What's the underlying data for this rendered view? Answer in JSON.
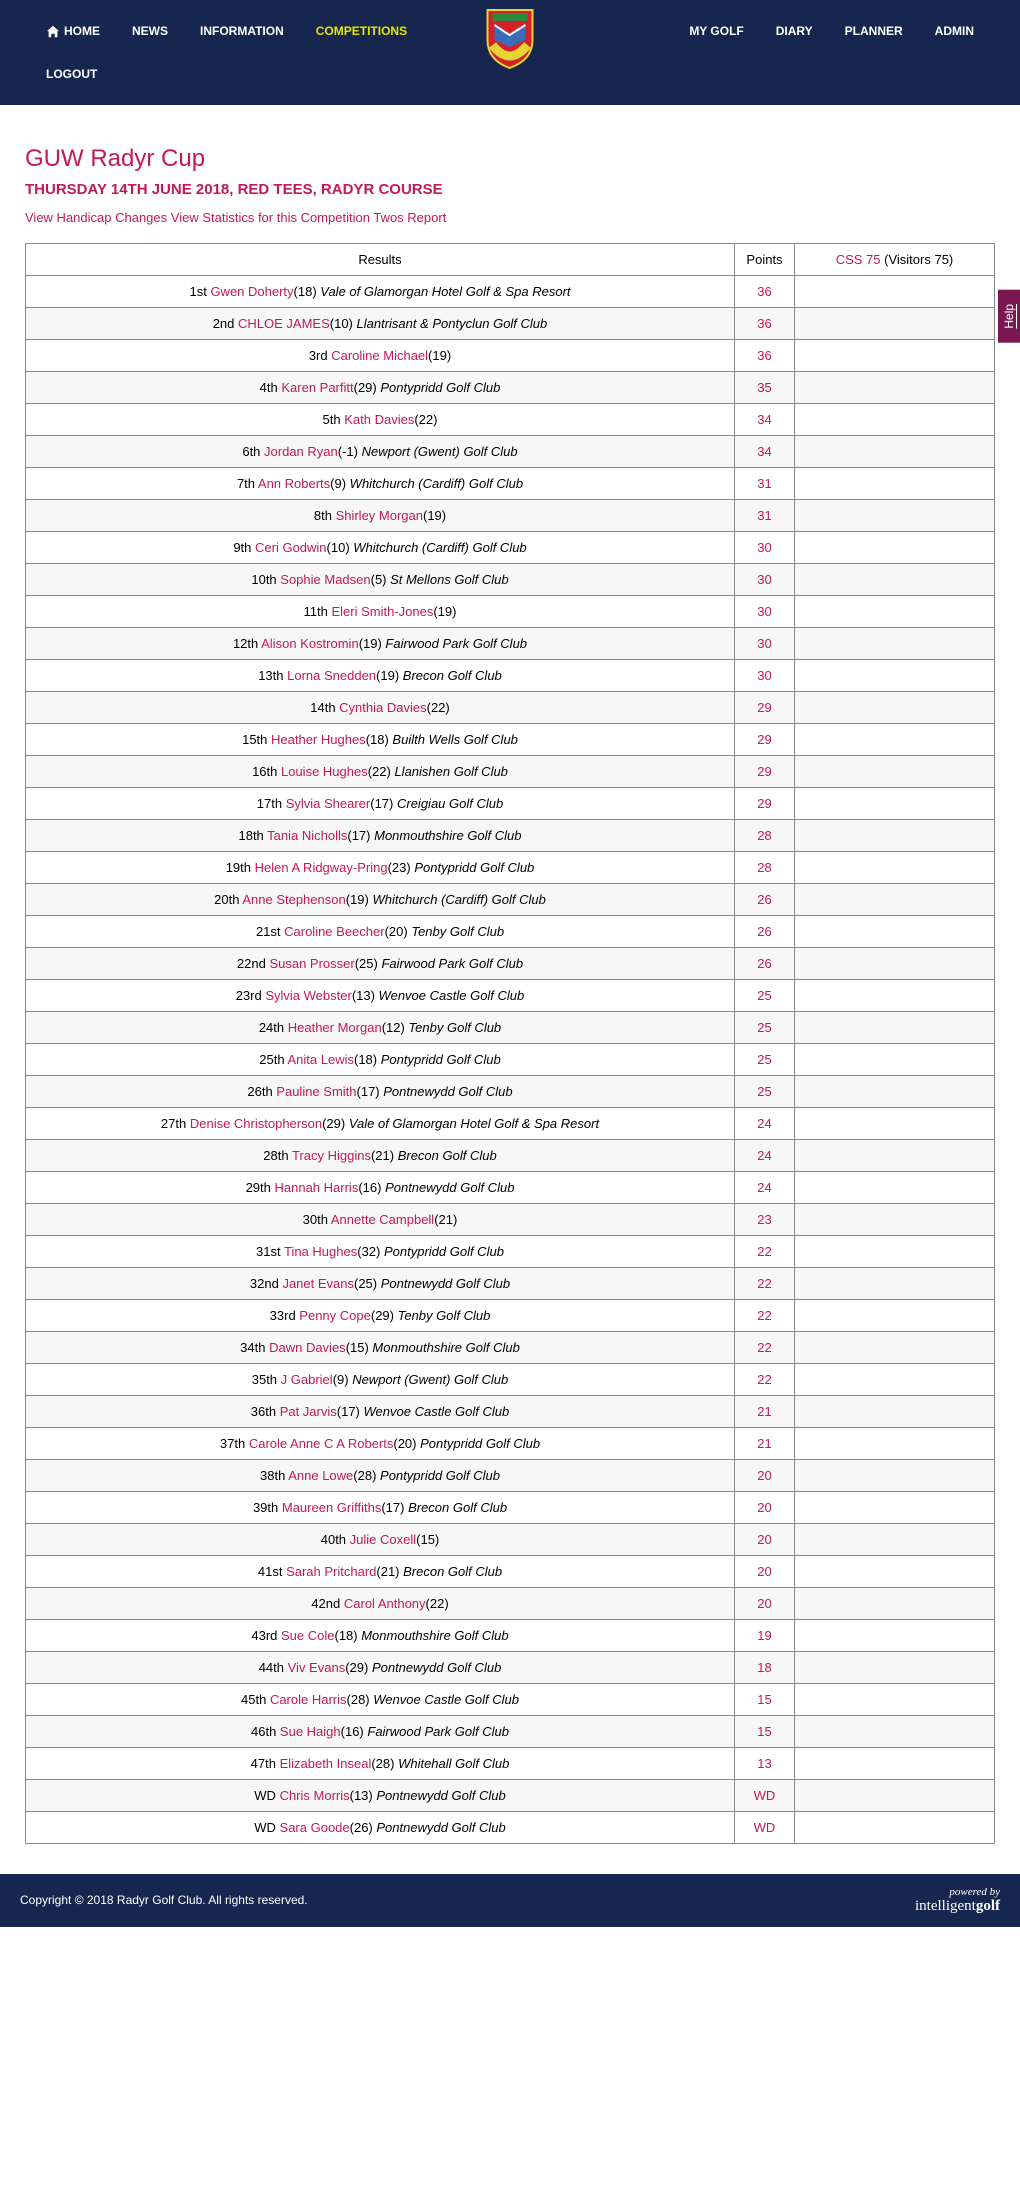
{
  "nav": {
    "left": [
      "HOME",
      "NEWS",
      "INFORMATION",
      "COMPETITIONS"
    ],
    "right": [
      "MY GOLF",
      "DIARY",
      "PLANNER",
      "ADMIN"
    ],
    "second_row": [
      "LOGOUT"
    ],
    "active": "COMPETITIONS"
  },
  "page": {
    "title": "GUW Radyr Cup",
    "subtitle": "THURSDAY 14TH JUNE 2018, RED TEES, RADYR COURSE",
    "links": [
      "View Handicap Changes",
      "View Statistics for this Competition",
      "Twos Report"
    ]
  },
  "table": {
    "headers": {
      "results": "Results",
      "points": "Points",
      "css_label": "CSS 75",
      "css_suffix": " (Visitors 75)"
    },
    "rows": [
      {
        "pos": "1st",
        "name": "Gwen Doherty",
        "hcp": "(18)",
        "club": "Vale of Glamorgan Hotel Golf & Spa Resort",
        "points": "36"
      },
      {
        "pos": "2nd",
        "name": "CHLOE JAMES",
        "hcp": "(10)",
        "club": "Llantrisant & Pontyclun Golf Club",
        "points": "36"
      },
      {
        "pos": "3rd",
        "name": "Caroline Michael",
        "hcp": "(19)",
        "club": "",
        "points": "36"
      },
      {
        "pos": "4th",
        "name": "Karen Parfitt",
        "hcp": "(29)",
        "club": "Pontypridd Golf Club",
        "points": "35"
      },
      {
        "pos": "5th",
        "name": "Kath Davies",
        "hcp": "(22)",
        "club": "",
        "points": "34"
      },
      {
        "pos": "6th",
        "name": "Jordan Ryan",
        "hcp": "(-1)",
        "club": "Newport (Gwent) Golf Club",
        "points": "34"
      },
      {
        "pos": "7th",
        "name": "Ann Roberts",
        "hcp": "(9)",
        "club": "Whitchurch (Cardiff) Golf Club",
        "points": "31"
      },
      {
        "pos": "8th",
        "name": "Shirley Morgan",
        "hcp": "(19)",
        "club": "",
        "points": "31"
      },
      {
        "pos": "9th",
        "name": "Ceri Godwin",
        "hcp": "(10)",
        "club": "Whitchurch (Cardiff) Golf Club",
        "points": "30"
      },
      {
        "pos": "10th",
        "name": "Sophie Madsen",
        "hcp": "(5)",
        "club": "St Mellons Golf Club",
        "points": "30"
      },
      {
        "pos": "11th",
        "name": "Eleri Smith-Jones",
        "hcp": "(19)",
        "club": "",
        "points": "30"
      },
      {
        "pos": "12th",
        "name": "Alison Kostromin",
        "hcp": "(19)",
        "club": "Fairwood Park Golf Club",
        "points": "30"
      },
      {
        "pos": "13th",
        "name": "Lorna Snedden",
        "hcp": "(19)",
        "club": "Brecon Golf Club",
        "points": "30"
      },
      {
        "pos": "14th",
        "name": "Cynthia Davies",
        "hcp": "(22)",
        "club": "",
        "points": "29"
      },
      {
        "pos": "15th",
        "name": "Heather Hughes",
        "hcp": "(18)",
        "club": "Builth Wells Golf Club",
        "points": "29"
      },
      {
        "pos": "16th",
        "name": "Louise Hughes",
        "hcp": "(22)",
        "club": "Llanishen Golf Club",
        "points": "29"
      },
      {
        "pos": "17th",
        "name": "Sylvia Shearer",
        "hcp": "(17)",
        "club": "Creigiau Golf Club",
        "points": "29"
      },
      {
        "pos": "18th",
        "name": "Tania Nicholls",
        "hcp": "(17)",
        "club": "Monmouthshire Golf Club",
        "points": "28"
      },
      {
        "pos": "19th",
        "name": "Helen A Ridgway-Pring",
        "hcp": "(23)",
        "club": "Pontypridd Golf Club",
        "points": "28"
      },
      {
        "pos": "20th",
        "name": "Anne Stephenson",
        "hcp": "(19)",
        "club": "Whitchurch (Cardiff) Golf Club",
        "points": "26"
      },
      {
        "pos": "21st",
        "name": "Caroline Beecher",
        "hcp": "(20)",
        "club": "Tenby Golf Club",
        "points": "26"
      },
      {
        "pos": "22nd",
        "name": "Susan Prosser",
        "hcp": "(25)",
        "club": "Fairwood Park Golf Club",
        "points": "26"
      },
      {
        "pos": "23rd",
        "name": "Sylvia Webster",
        "hcp": "(13)",
        "club": "Wenvoe Castle Golf Club",
        "points": "25"
      },
      {
        "pos": "24th",
        "name": "Heather Morgan",
        "hcp": "(12)",
        "club": "Tenby Golf Club",
        "points": "25"
      },
      {
        "pos": "25th",
        "name": "Anita Lewis",
        "hcp": "(18)",
        "club": "Pontypridd Golf Club",
        "points": "25"
      },
      {
        "pos": "26th",
        "name": "Pauline Smith",
        "hcp": "(17)",
        "club": "Pontnewydd Golf Club",
        "points": "25"
      },
      {
        "pos": "27th",
        "name": "Denise Christopherson",
        "hcp": "(29)",
        "club": "Vale of Glamorgan Hotel Golf & Spa Resort",
        "points": "24"
      },
      {
        "pos": "28th",
        "name": "Tracy Higgins",
        "hcp": "(21)",
        "club": "Brecon Golf Club",
        "points": "24"
      },
      {
        "pos": "29th",
        "name": "Hannah Harris",
        "hcp": "(16)",
        "club": "Pontnewydd Golf Club",
        "points": "24"
      },
      {
        "pos": "30th",
        "name": "Annette Campbell",
        "hcp": "(21)",
        "club": "",
        "points": "23"
      },
      {
        "pos": "31st",
        "name": "Tina Hughes",
        "hcp": "(32)",
        "club": "Pontypridd Golf Club",
        "points": "22"
      },
      {
        "pos": "32nd",
        "name": "Janet Evans",
        "hcp": "(25)",
        "club": "Pontnewydd Golf Club",
        "points": "22"
      },
      {
        "pos": "33rd",
        "name": "Penny Cope",
        "hcp": "(29)",
        "club": "Tenby Golf Club",
        "points": "22"
      },
      {
        "pos": "34th",
        "name": "Dawn Davies",
        "hcp": "(15)",
        "club": "Monmouthshire Golf Club",
        "points": "22"
      },
      {
        "pos": "35th",
        "name": "J Gabriel",
        "hcp": "(9)",
        "club": "Newport (Gwent) Golf Club",
        "points": "22"
      },
      {
        "pos": "36th",
        "name": "Pat Jarvis",
        "hcp": "(17)",
        "club": "Wenvoe Castle Golf Club",
        "points": "21"
      },
      {
        "pos": "37th",
        "name": "Carole Anne C A Roberts",
        "hcp": "(20)",
        "club": "Pontypridd Golf Club",
        "points": "21"
      },
      {
        "pos": "38th",
        "name": "Anne Lowe",
        "hcp": "(28)",
        "club": "Pontypridd Golf Club",
        "points": "20"
      },
      {
        "pos": "39th",
        "name": "Maureen Griffiths",
        "hcp": "(17)",
        "club": "Brecon Golf Club",
        "points": "20"
      },
      {
        "pos": "40th",
        "name": "Julie Coxell",
        "hcp": "(15)",
        "club": "",
        "points": "20"
      },
      {
        "pos": "41st",
        "name": "Sarah Pritchard",
        "hcp": "(21)",
        "club": "Brecon Golf Club",
        "points": "20"
      },
      {
        "pos": "42nd",
        "name": "Carol Anthony",
        "hcp": "(22)",
        "club": "",
        "points": "20"
      },
      {
        "pos": "43rd",
        "name": "Sue Cole",
        "hcp": "(18)",
        "club": "Monmouthshire Golf Club",
        "points": "19"
      },
      {
        "pos": "44th",
        "name": "Viv Evans",
        "hcp": "(29)",
        "club": "Pontnewydd Golf Club",
        "points": "18"
      },
      {
        "pos": "45th",
        "name": "Carole Harris",
        "hcp": "(28)",
        "club": "Wenvoe Castle Golf Club",
        "points": "15"
      },
      {
        "pos": "46th",
        "name": "Sue Haigh",
        "hcp": "(16)",
        "club": "Fairwood Park Golf Club",
        "points": "15"
      },
      {
        "pos": "47th",
        "name": "Elizabeth Inseal",
        "hcp": "(28)",
        "club": "Whitehall Golf Club",
        "points": "13"
      },
      {
        "pos": "WD",
        "name": "Chris Morris",
        "hcp": "(13)",
        "club": "Pontnewydd Golf Club",
        "points": "WD"
      },
      {
        "pos": "WD",
        "name": "Sara Goode",
        "hcp": "(26)",
        "club": "Pontnewydd Golf Club",
        "points": "WD"
      }
    ]
  },
  "help": "Help",
  "footer": {
    "copyright": "Copyright © 2018 Radyr Golf Club. All rights reserved.",
    "powered_prefix": "powered by",
    "powered_light": "intelligent",
    "powered_bold": "golf"
  },
  "colors": {
    "brand": "#c5175a",
    "header_bg": "#16264e",
    "nav_active": "#e6e600",
    "help_bg": "#7b1852",
    "row_alt": "#f7f7f7",
    "border": "#888888"
  }
}
